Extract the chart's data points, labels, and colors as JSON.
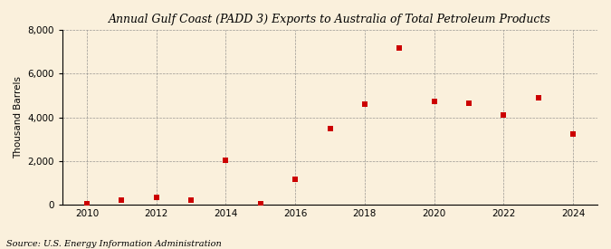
{
  "title": "Annual Gulf Coast (PADD 3) Exports to Australia of Total Petroleum Products",
  "ylabel": "Thousand Barrels",
  "source": "Source: U.S. Energy Information Administration",
  "background_color": "#faf0dc",
  "years": [
    2010,
    2011,
    2012,
    2013,
    2014,
    2015,
    2016,
    2017,
    2018,
    2019,
    2020,
    2021,
    2022,
    2023,
    2024
  ],
  "values": [
    50,
    200,
    310,
    200,
    2050,
    50,
    1150,
    3500,
    4600,
    7200,
    4750,
    4650,
    4100,
    4900,
    3250
  ],
  "marker_color": "#cc0000",
  "marker_size": 5,
  "ylim": [
    0,
    8000
  ],
  "yticks": [
    0,
    2000,
    4000,
    6000,
    8000
  ],
  "xlim": [
    2009.3,
    2024.7
  ],
  "xticks": [
    2010,
    2012,
    2014,
    2016,
    2018,
    2020,
    2022,
    2024
  ]
}
